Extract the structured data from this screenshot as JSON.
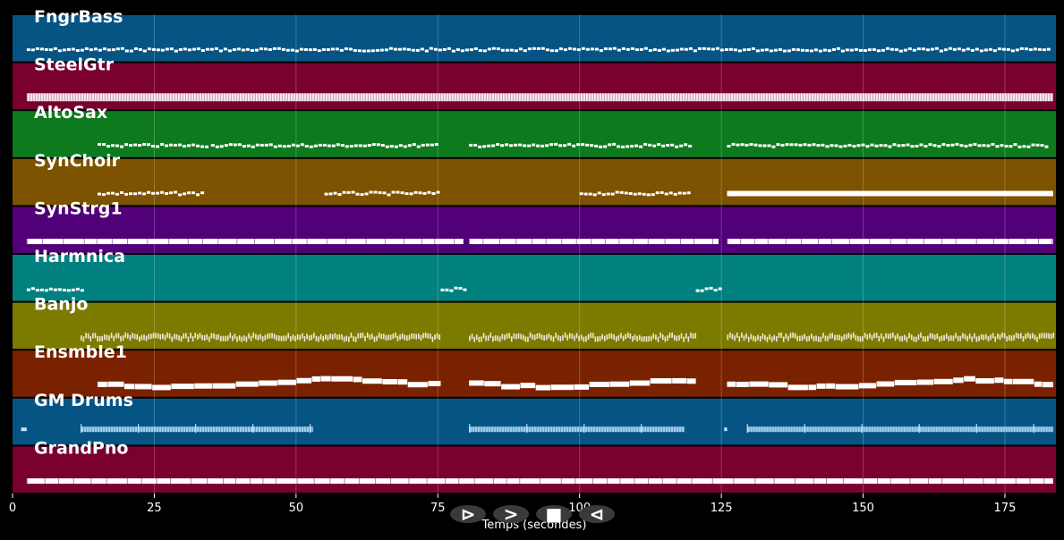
{
  "chart_data": {
    "type": "piano-roll",
    "title": "",
    "xlabel": "Temps (secondes)",
    "xlim": [
      0,
      184
    ],
    "x_ticks": [
      0,
      25,
      50,
      75,
      100,
      125,
      150,
      175
    ],
    "grid": true,
    "tracks": [
      {
        "name": "FngrBass",
        "color": "#055484",
        "style": "dots",
        "segments": [
          [
            2.5,
            183.5
          ]
        ]
      },
      {
        "name": "SteelGtr",
        "color": "#7a0030",
        "style": "thick",
        "segments": [
          [
            2.5,
            183.5
          ]
        ]
      },
      {
        "name": "AltoSax",
        "color": "#0d7a1e",
        "style": "dots",
        "segments": [
          [
            15,
            35
          ],
          [
            35,
            75.5
          ],
          [
            80.5,
            120
          ],
          [
            126,
            183
          ]
        ]
      },
      {
        "name": "SynChoir",
        "color": "#7d5200",
        "style": "mixed",
        "segments": [
          [
            15,
            34
          ],
          [
            55,
            75.5
          ],
          [
            100,
            120
          ],
          [
            126,
            183.5
          ]
        ]
      },
      {
        "name": "SynStrg1",
        "color": "#51007a",
        "style": "solid",
        "segments": [
          [
            2.5,
            79.5
          ],
          [
            80.5,
            124.5
          ],
          [
            126,
            183.5
          ]
        ]
      },
      {
        "name": "Harmnica",
        "color": "#00807e",
        "style": "dots",
        "segments": [
          [
            2.5,
            13
          ],
          [
            75.5,
            80.5
          ],
          [
            120.5,
            125.5
          ]
        ]
      },
      {
        "name": "Banjo",
        "color": "#7d7a00",
        "style": "dense",
        "segments": [
          [
            12,
            75.5
          ],
          [
            80.5,
            120.5
          ],
          [
            126,
            183.5
          ]
        ]
      },
      {
        "name": "Ensmble1",
        "color": "#7a2200",
        "style": "thick-wavy",
        "segments": [
          [
            15,
            75.5
          ],
          [
            80.5,
            120.5
          ],
          [
            126,
            183.5
          ]
        ]
      },
      {
        "name": "GM Drums",
        "color": "#055484",
        "style": "drums",
        "segments": [
          [
            1.5,
            2.5
          ],
          [
            12,
            53
          ],
          [
            80.5,
            118.5
          ],
          [
            125.5,
            126
          ],
          [
            129.5,
            183.5
          ]
        ]
      },
      {
        "name": "GrandPno",
        "color": "#7a0030",
        "style": "solid",
        "segments": [
          [
            2.5,
            183.5
          ]
        ]
      }
    ]
  },
  "controls": [
    {
      "name": "play-button",
      "symbol": "⊳"
    },
    {
      "name": "forward-button",
      "symbol": ">"
    },
    {
      "name": "stop-button",
      "symbol": "■"
    },
    {
      "name": "rewind-button",
      "symbol": "⊲"
    }
  ]
}
